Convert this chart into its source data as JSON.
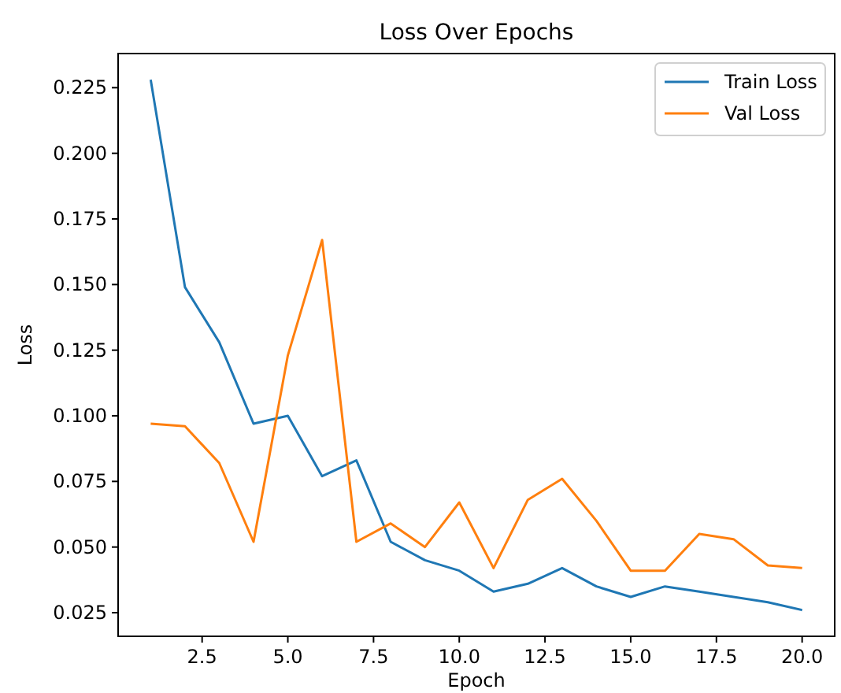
{
  "chart_data": {
    "type": "line",
    "title": "Loss Over Epochs",
    "xlabel": "Epoch",
    "ylabel": "Loss",
    "x": [
      1,
      2,
      3,
      4,
      5,
      6,
      7,
      8,
      9,
      10,
      11,
      12,
      13,
      14,
      15,
      16,
      17,
      18,
      19,
      20
    ],
    "series": [
      {
        "name": "Train Loss",
        "color": "#1f77b4",
        "values": [
          0.228,
          0.149,
          0.128,
          0.097,
          0.1,
          0.077,
          0.083,
          0.052,
          0.045,
          0.041,
          0.033,
          0.036,
          0.042,
          0.035,
          0.031,
          0.035,
          0.033,
          0.031,
          0.029,
          0.026
        ]
      },
      {
        "name": "Val Loss",
        "color": "#ff7f0e",
        "values": [
          0.097,
          0.096,
          0.082,
          0.052,
          0.123,
          0.167,
          0.052,
          0.059,
          0.05,
          0.067,
          0.042,
          0.068,
          0.076,
          0.06,
          0.041,
          0.041,
          0.055,
          0.053,
          0.043,
          0.042
        ]
      }
    ],
    "xlim": [
      0.05,
      20.95
    ],
    "ylim": [
      0.016,
      0.238
    ],
    "xticks": [
      {
        "value": 2.5,
        "label": "2.5"
      },
      {
        "value": 5,
        "label": "5.0"
      },
      {
        "value": 7.5,
        "label": "7.5"
      },
      {
        "value": 10,
        "label": "10.0"
      },
      {
        "value": 12.5,
        "label": "12.5"
      },
      {
        "value": 15,
        "label": "15.0"
      },
      {
        "value": 17.5,
        "label": "17.5"
      },
      {
        "value": 20,
        "label": "20.0"
      }
    ],
    "yticks": [
      {
        "value": 0.025,
        "label": "0.025"
      },
      {
        "value": 0.05,
        "label": "0.050"
      },
      {
        "value": 0.075,
        "label": "0.075"
      },
      {
        "value": 0.1,
        "label": "0.100"
      },
      {
        "value": 0.125,
        "label": "0.125"
      },
      {
        "value": 0.15,
        "label": "0.150"
      },
      {
        "value": 0.175,
        "label": "0.175"
      },
      {
        "value": 0.2,
        "label": "0.200"
      },
      {
        "value": 0.225,
        "label": "0.225"
      }
    ],
    "legend": "top right",
    "grid": false,
    "marker": "none",
    "line_style": "solid"
  }
}
